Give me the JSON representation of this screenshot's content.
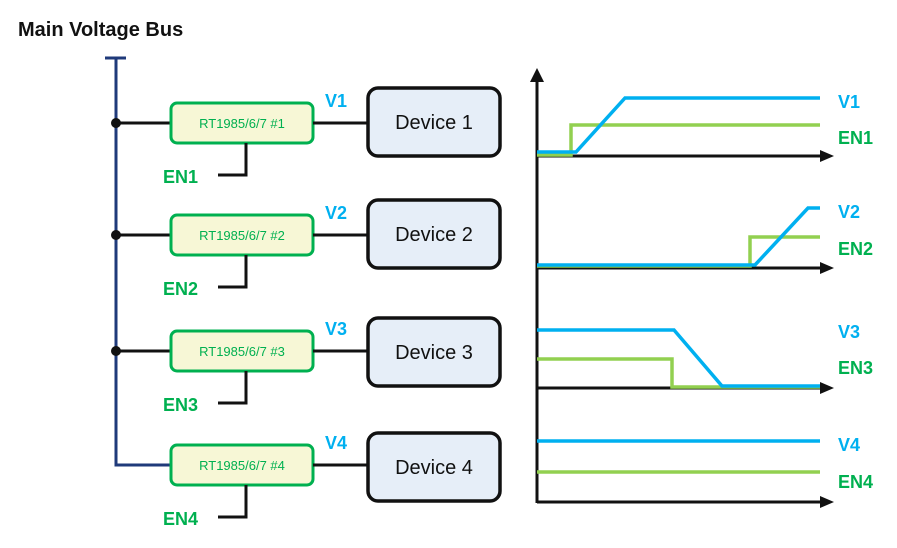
{
  "title": "Main Voltage Bus",
  "colors": {
    "bus": "#1f3a7a",
    "voltage": "#00b0f0",
    "enable_line": "#92d050",
    "enable_text": "#00b050",
    "regulator_fill": "#f7f7d6",
    "device_fill": "#e6eef8"
  },
  "channels": [
    {
      "regulator": "RT1985/6/7 #1",
      "device": "Device 1",
      "voltage_label": "V1",
      "enable_label": "EN1",
      "waveform": "enable early, voltage ramps up"
    },
    {
      "regulator": "RT1985/6/7 #2",
      "device": "Device 2",
      "voltage_label": "V2",
      "enable_label": "EN2",
      "waveform": "enable late, voltage ramps up"
    },
    {
      "regulator": "RT1985/6/7 #3",
      "device": "Device 3",
      "voltage_label": "V3",
      "enable_label": "EN3",
      "waveform": "enable goes low, voltage ramps down"
    },
    {
      "regulator": "RT1985/6/7 #4",
      "device": "Device 4",
      "voltage_label": "V4",
      "enable_label": "EN4",
      "waveform": "both constant high"
    }
  ]
}
